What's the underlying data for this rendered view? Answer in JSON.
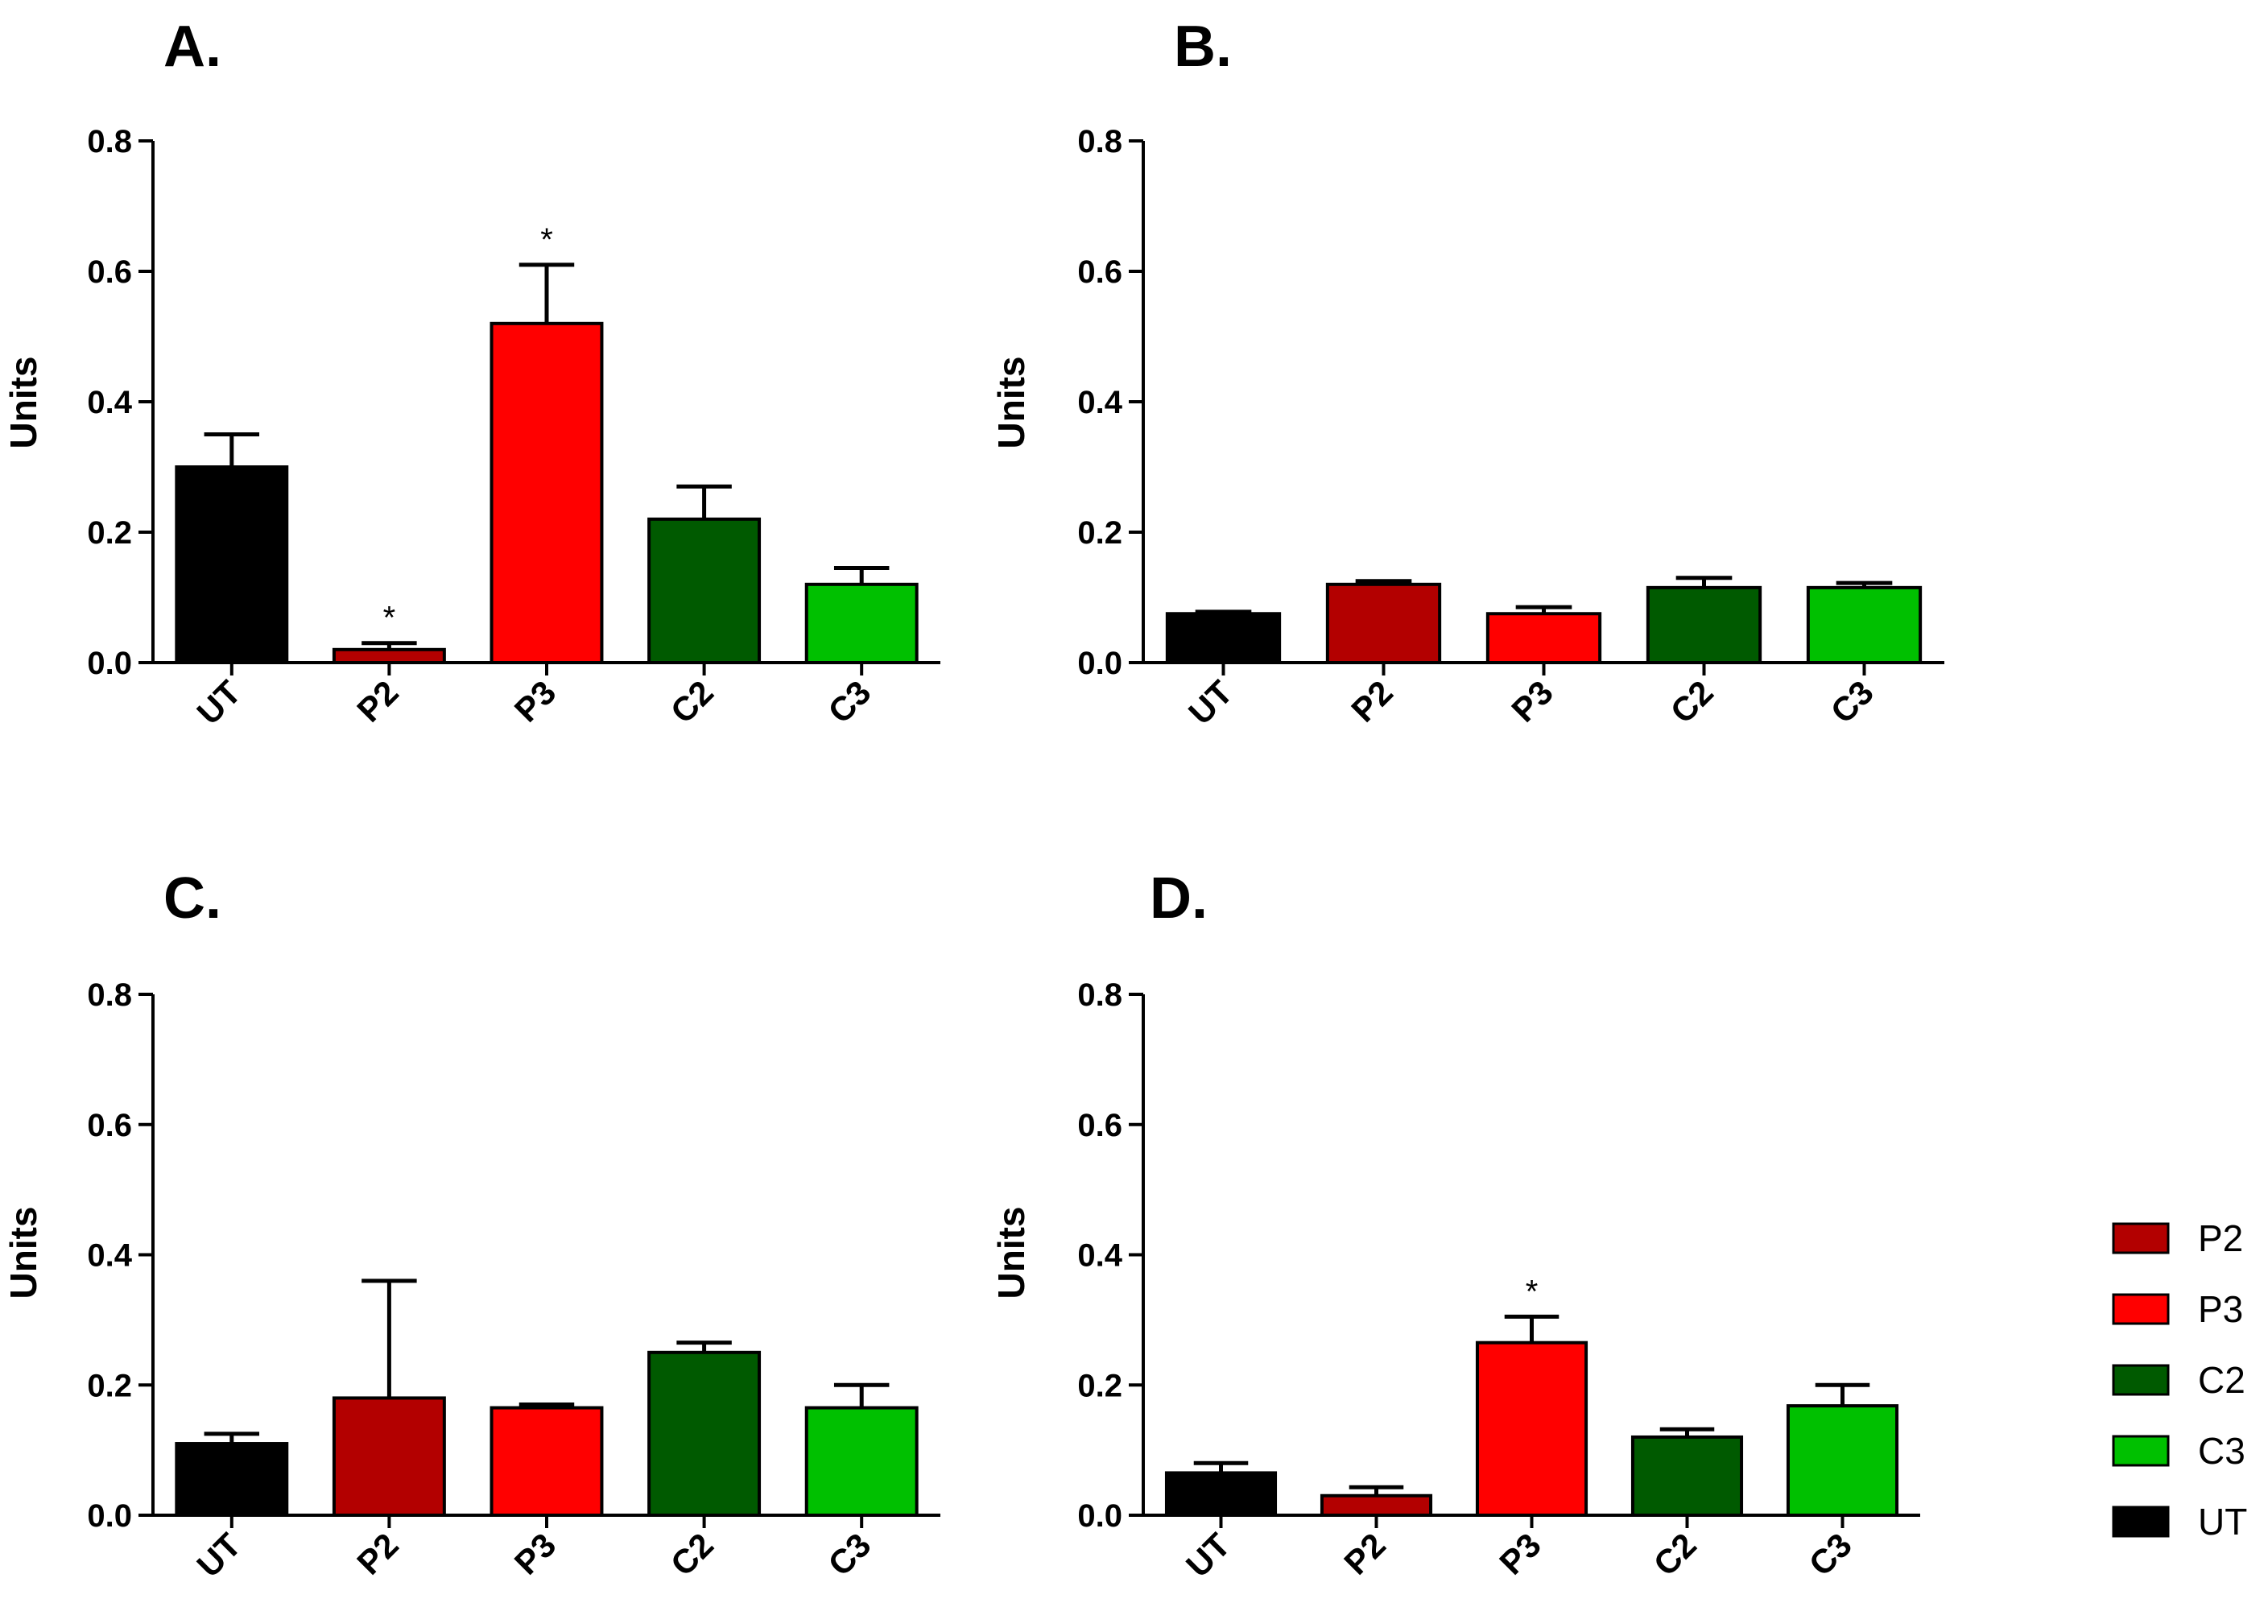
{
  "chart_data": [
    {
      "type": "bar",
      "panel": "A.",
      "ylabel": "Units",
      "ylim": [
        0,
        0.8
      ],
      "yticks": [
        "0.0",
        "0.2",
        "0.4",
        "0.6",
        "0.8"
      ],
      "categories": [
        "UT",
        "P2",
        "P3",
        "C2",
        "C3"
      ],
      "values": [
        0.3,
        0.02,
        0.52,
        0.22,
        0.12
      ],
      "errors": [
        0.05,
        0.01,
        0.09,
        0.05,
        0.025
      ],
      "significance": [
        "",
        "*",
        "*",
        "",
        ""
      ]
    },
    {
      "type": "bar",
      "panel": "B.",
      "ylabel": "Units",
      "ylim": [
        0,
        0.8
      ],
      "yticks": [
        "0.0",
        "0.2",
        "0.4",
        "0.6",
        "0.8"
      ],
      "categories": [
        "UT",
        "P2",
        "P3",
        "C2",
        "C3"
      ],
      "values": [
        0.075,
        0.12,
        0.075,
        0.115,
        0.115
      ],
      "errors": [
        0.003,
        0.005,
        0.01,
        0.015,
        0.007
      ],
      "significance": [
        "",
        "",
        "",
        "",
        ""
      ]
    },
    {
      "type": "bar",
      "panel": "C.",
      "ylabel": "Units",
      "ylim": [
        0,
        0.8
      ],
      "yticks": [
        "0.0",
        "0.2",
        "0.4",
        "0.6",
        "0.8"
      ],
      "categories": [
        "UT",
        "P2",
        "P3",
        "C2",
        "C3"
      ],
      "values": [
        0.11,
        0.18,
        0.165,
        0.25,
        0.165
      ],
      "errors": [
        0.015,
        0.18,
        0.005,
        0.015,
        0.035
      ],
      "significance": [
        "",
        "",
        "",
        "",
        ""
      ]
    },
    {
      "type": "bar",
      "panel": "D.",
      "ylabel": "Units",
      "ylim": [
        0,
        0.8
      ],
      "yticks": [
        "0.0",
        "0.2",
        "0.4",
        "0.6",
        "0.8"
      ],
      "categories": [
        "UT",
        "P2",
        "P3",
        "C2",
        "C3"
      ],
      "values": [
        0.065,
        0.03,
        0.265,
        0.12,
        0.168
      ],
      "errors": [
        0.015,
        0.013,
        0.04,
        0.012,
        0.032
      ],
      "significance": [
        "",
        "",
        "*",
        "",
        ""
      ]
    }
  ],
  "colors": {
    "UT": "#000000",
    "P2": "#b30000",
    "P3": "#ff0000",
    "C2": "#005a00",
    "C3": "#00c000"
  },
  "legend": [
    "P2",
    "P3",
    "C2",
    "C3",
    "UT"
  ]
}
